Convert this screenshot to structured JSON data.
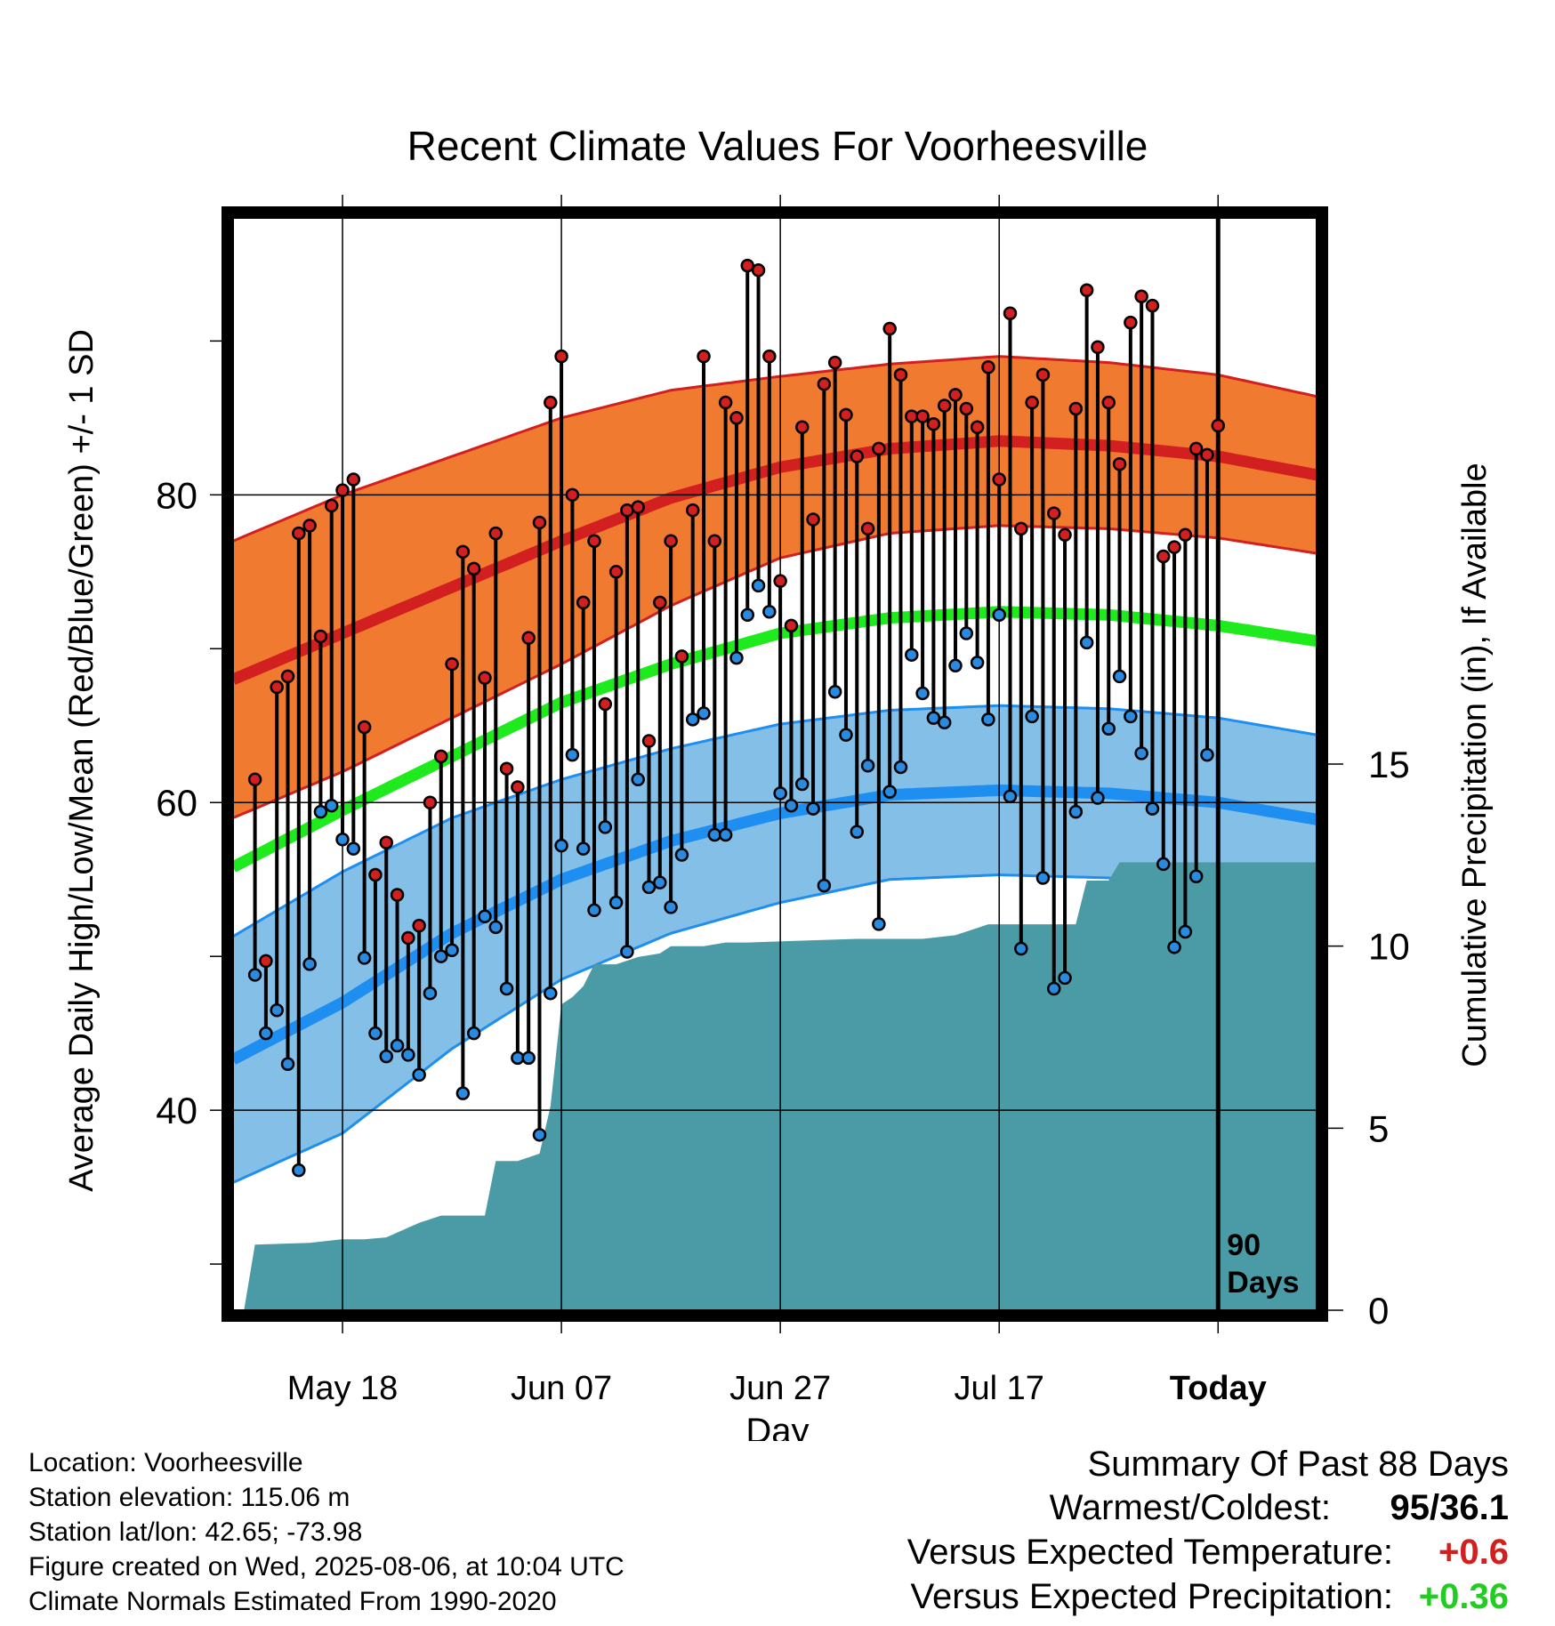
{
  "chart_data": {
    "type": "line",
    "title": "Recent Climate Values For Voorheesville",
    "xlabel": "Day",
    "ylabel": "Average Daily High/Low/Mean (Red/Blue/Green) +/- 1 SD",
    "y2label": "Cumulative Precipitation (in), If Available",
    "ylim": [
      27,
      98
    ],
    "y2lim": [
      0,
      30
    ],
    "y_ticks": [
      40,
      60,
      80
    ],
    "y2_ticks": [
      0,
      5,
      10,
      15
    ],
    "x_ticks": [
      {
        "day": 8,
        "label": "May 18"
      },
      {
        "day": 28,
        "label": "Jun 07"
      },
      {
        "day": 48,
        "label": "Jun 27"
      },
      {
        "day": 68,
        "label": "Jul 17"
      },
      {
        "day": 88,
        "label": "Today"
      }
    ],
    "x_range": [
      -2,
      97
    ],
    "grid": true,
    "marker": {
      "day": 88,
      "label_line1": "90",
      "label_line2": "Days"
    },
    "normals": {
      "days": [
        -2,
        8,
        18,
        28,
        38,
        48,
        58,
        68,
        78,
        88,
        97
      ],
      "high_mean": [
        68.0,
        71.0,
        74.0,
        77.0,
        79.8,
        81.8,
        83.0,
        83.5,
        83.2,
        82.5,
        81.3
      ],
      "high_sd": [
        9.0,
        9.0,
        8.5,
        8.0,
        7.0,
        5.9,
        5.5,
        5.5,
        5.4,
        5.3,
        5.1
      ],
      "mean": [
        55.8,
        59.5,
        63.0,
        66.5,
        69.0,
        71.0,
        72.0,
        72.4,
        72.2,
        71.5,
        70.5
      ],
      "low_mean": [
        43.3,
        47.0,
        51.5,
        55.0,
        57.5,
        59.3,
        60.5,
        60.8,
        60.6,
        60.0,
        58.9
      ],
      "low_sd": [
        8.0,
        8.5,
        7.5,
        6.5,
        6.0,
        5.8,
        5.5,
        5.5,
        5.5,
        5.5,
        5.5
      ]
    },
    "series": [
      {
        "name": "High",
        "color": "#d21f1f",
        "values": [
          61.5,
          49.7,
          67.5,
          68.2,
          77.5,
          78.0,
          70.8,
          79.3,
          80.3,
          81.0,
          64.9,
          55.3,
          57.4,
          54.0,
          51.2,
          52.0,
          60.0,
          63.0,
          69.0,
          76.3,
          75.2,
          68.1,
          77.5,
          62.2,
          61.0,
          70.7,
          78.2,
          86.0,
          89.0,
          80.0,
          73.0,
          77.0,
          66.4,
          75.0,
          79.0,
          79.2,
          64.0,
          73.0,
          77.0,
          69.5,
          79.0,
          89.0,
          77.0,
          86.0,
          85.0,
          94.9,
          94.6,
          89.0,
          74.4,
          71.5,
          84.4,
          78.4,
          87.2,
          88.6,
          85.2,
          82.5,
          77.8,
          83.0,
          90.8,
          87.8,
          85.1,
          85.1,
          84.6,
          85.8,
          86.5,
          85.6,
          84.4,
          88.3,
          81.0,
          91.8,
          77.8,
          86.0,
          87.8,
          78.8,
          77.4,
          85.6,
          93.3,
          89.6,
          86.0,
          82.0,
          91.2,
          92.9,
          92.3,
          76.0,
          76.6,
          77.4,
          83.0,
          82.6,
          84.5
        ]
      },
      {
        "name": "Low",
        "color": "#2a8ae0",
        "values": [
          48.8,
          45.0,
          46.5,
          43.0,
          36.1,
          49.5,
          59.4,
          59.8,
          57.6,
          57.0,
          49.9,
          45.0,
          43.5,
          44.2,
          43.6,
          42.3,
          47.6,
          50.0,
          50.4,
          41.1,
          45.0,
          52.6,
          51.9,
          47.9,
          43.4,
          43.4,
          38.4,
          47.6,
          57.2,
          63.1,
          57.0,
          53.0,
          58.4,
          53.5,
          50.3,
          61.5,
          54.5,
          54.8,
          53.2,
          56.6,
          65.4,
          65.8,
          57.9,
          57.9,
          69.4,
          72.2,
          74.1,
          72.4,
          60.6,
          59.8,
          61.2,
          59.6,
          54.6,
          67.2,
          64.4,
          58.1,
          62.4,
          52.1,
          60.7,
          62.3,
          69.6,
          67.1,
          65.5,
          65.2,
          68.9,
          71.0,
          69.1,
          65.4,
          72.2,
          60.4,
          50.5,
          65.6,
          55.1,
          47.9,
          48.6,
          59.4,
          70.4,
          60.3,
          64.8,
          68.2,
          65.6,
          63.2,
          59.6,
          56.0,
          50.6,
          51.6,
          55.2,
          63.1
        ]
      }
    ],
    "precip": {
      "name": "Cumulative Precipitation",
      "color": "#4a9ba5",
      "days": [
        -1,
        0,
        5,
        8,
        10,
        12,
        15,
        17,
        21,
        22,
        24,
        26,
        27,
        28,
        29,
        30,
        31,
        33,
        35,
        37,
        38,
        41,
        43,
        45,
        50,
        55,
        61,
        64,
        66,
        67,
        73,
        75,
        76,
        78,
        79,
        80,
        85,
        87,
        89,
        91,
        95,
        97
      ],
      "totals": [
        0,
        1.8,
        1.85,
        1.95,
        1.95,
        2.0,
        2.4,
        2.6,
        2.6,
        4.1,
        4.1,
        4.3,
        5.6,
        8.4,
        8.6,
        8.9,
        9.5,
        9.5,
        9.7,
        9.8,
        10.0,
        10.0,
        10.1,
        10.1,
        10.15,
        10.2,
        10.2,
        10.3,
        10.5,
        10.6,
        10.6,
        10.6,
        11.8,
        11.8,
        12.3,
        12.3,
        12.3,
        12.3,
        12.3,
        12.3,
        12.3,
        12.3
      ]
    }
  },
  "footer": {
    "location": "Location: Voorheesville",
    "elevation": "Station elevation: 115.06 m",
    "latlon": "Station lat/lon: 42.65; -73.98",
    "created": "Figure created on Wed, 2025-08-06, at 10:04 UTC",
    "normals": "Climate Normals Estimated From 1990-2020"
  },
  "summary": {
    "title": "Summary Of Past 88 Days",
    "warmest_coldest_label": "Warmest/Coldest:",
    "warmest_coldest_value": "95/36.1",
    "temp_label": "Versus Expected Temperature:",
    "temp_value": "+0.6",
    "temp_color": "#d21f1f",
    "precip_label": "Versus Expected Precipitation:",
    "precip_value": "+0.36",
    "precip_color": "#22cc22"
  },
  "colors": {
    "high_band": "#f07a30",
    "high_line": "#d21f1f",
    "mean_line": "#1eea1e",
    "low_band": "#84bfe8",
    "low_line": "#1e8ef0"
  }
}
